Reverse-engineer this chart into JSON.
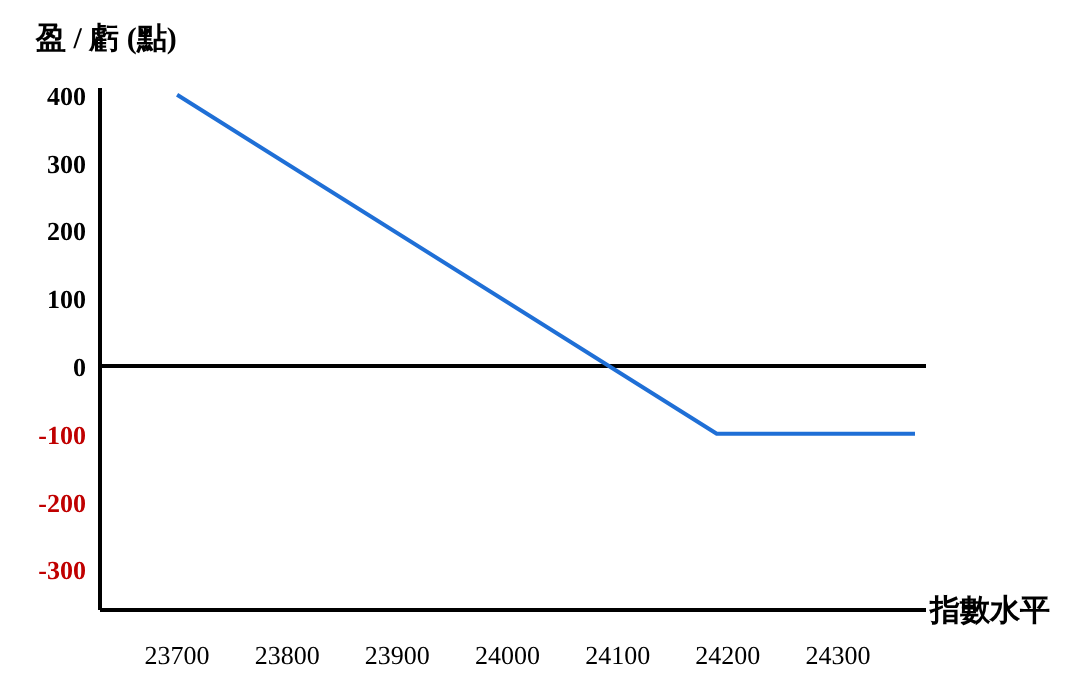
{
  "chart_data": {
    "type": "line",
    "ylabel": "盈 / 虧 (點)",
    "xlabel": "指數水平",
    "x": [
      23700,
      24190,
      24370
    ],
    "series": [
      {
        "color": "#1f6fd6",
        "values": [
          400,
          -100,
          -100
        ]
      }
    ],
    "xlim": [
      23630,
      24380
    ],
    "ylim": [
      -360,
      410
    ],
    "xticks": [
      23700,
      23800,
      23900,
      24000,
      24100,
      24200,
      24300
    ],
    "yticks": [
      400,
      300,
      200,
      100,
      0,
      -100,
      -200,
      -300
    ],
    "ref_lines": [
      {
        "axis": "y",
        "value": 0,
        "color": "#000000"
      }
    ],
    "marker": "none",
    "line_style": "solid"
  }
}
